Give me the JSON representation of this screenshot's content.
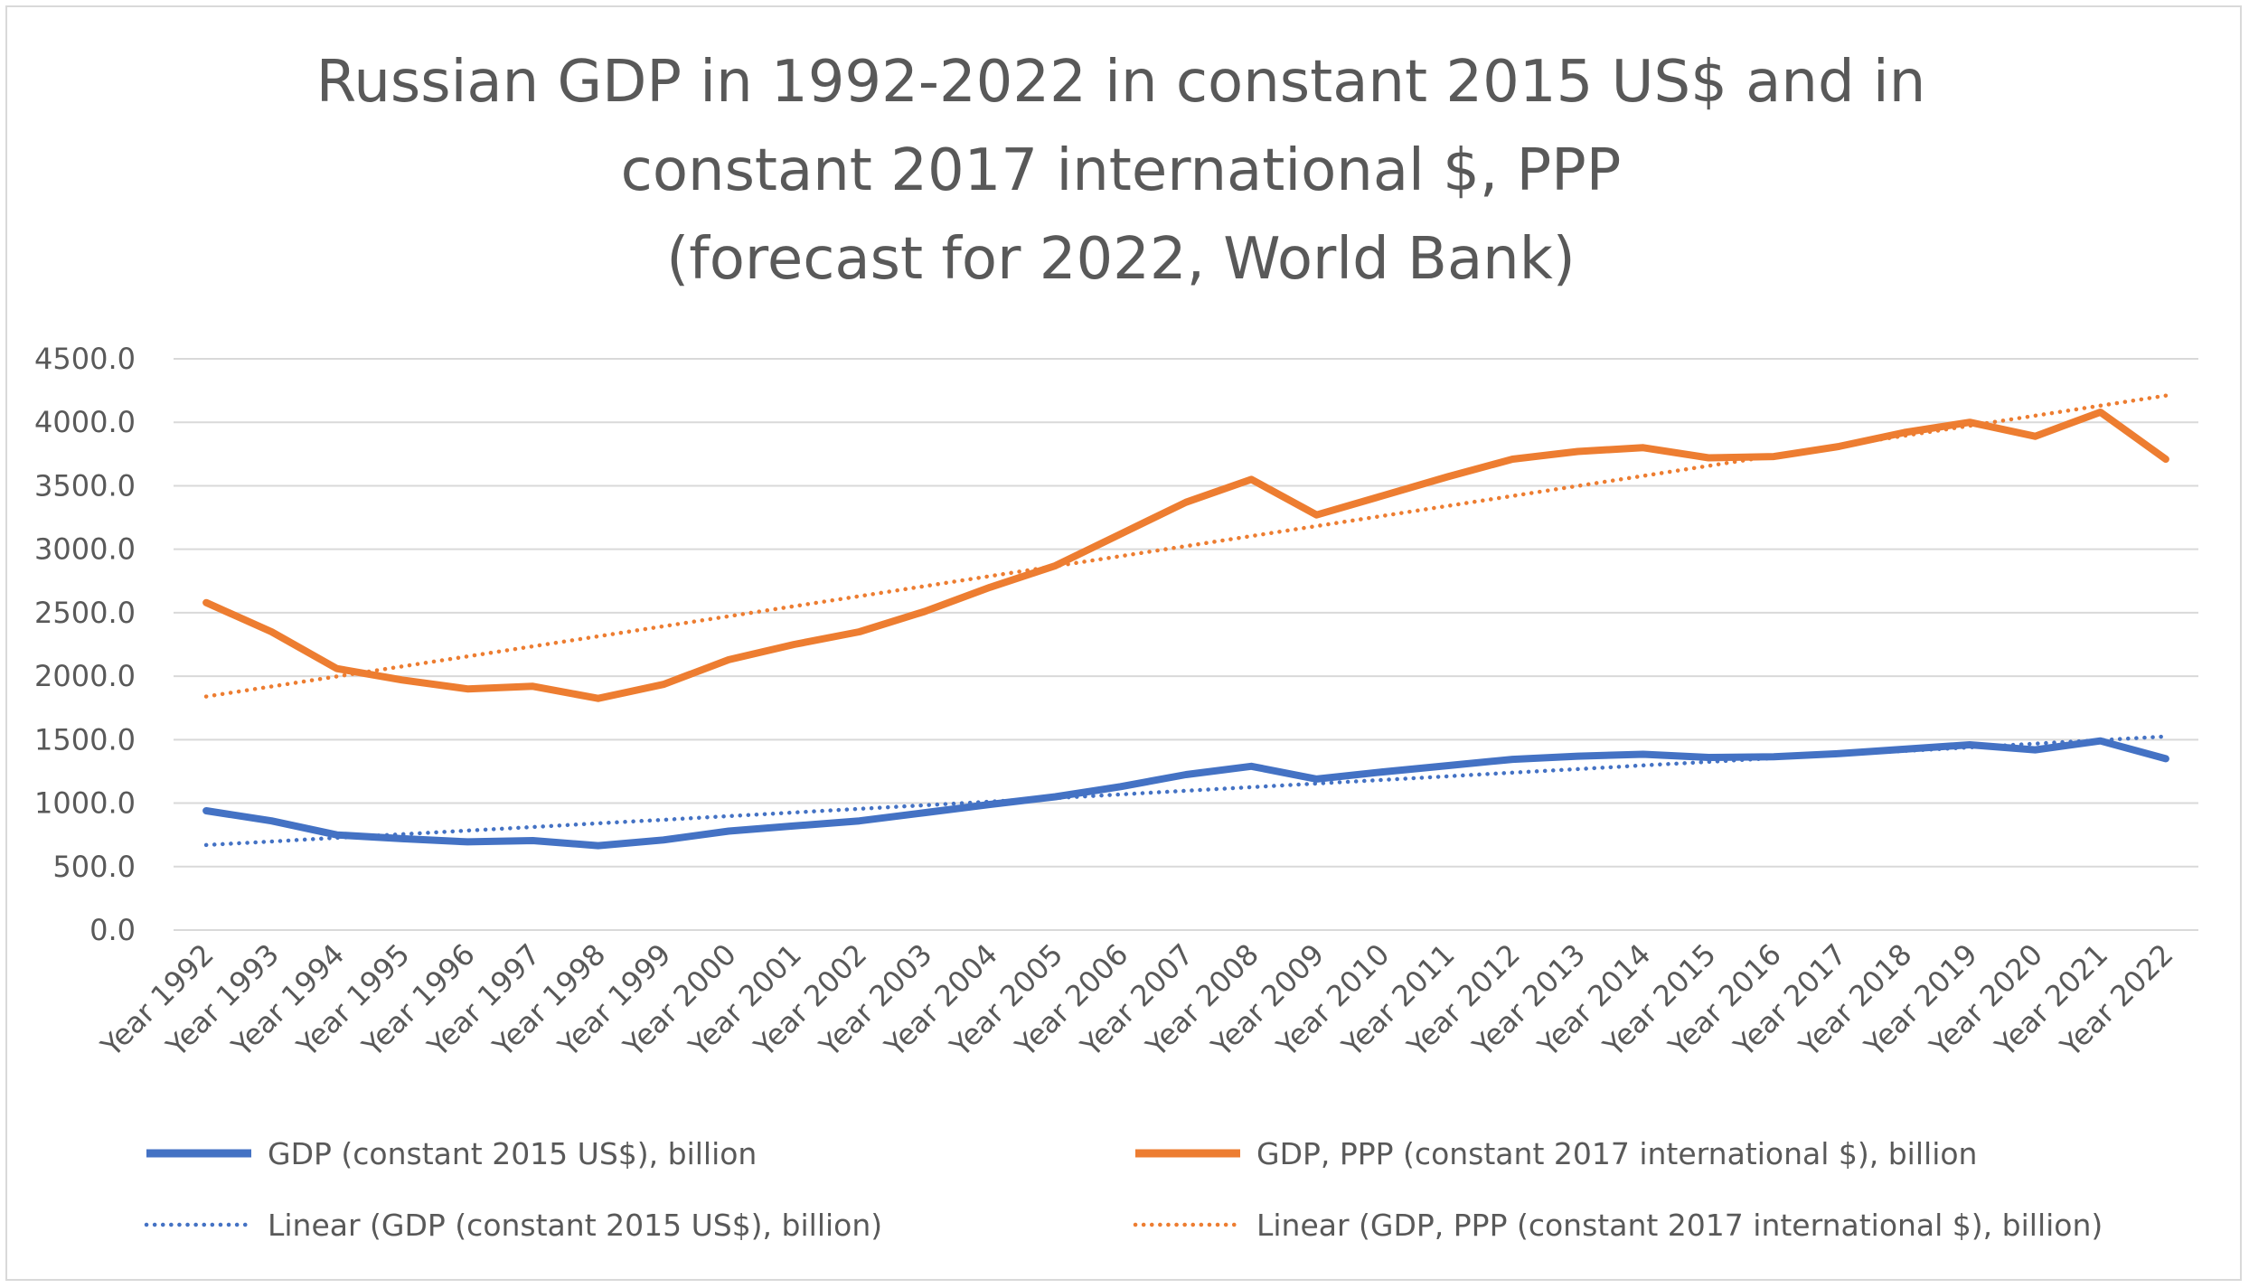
{
  "chart_data": {
    "type": "line",
    "title_lines": [
      "Russian GDP in 1992-2022 in constant 2015 US$ and in",
      "constant 2017 international $, PPP",
      "(forecast for 2022, World Bank)"
    ],
    "xlabel": "",
    "ylabel": "",
    "ylim": [
      0,
      4500
    ],
    "y_ticks": [
      "0.0",
      "500.0",
      "1000.0",
      "1500.0",
      "2000.0",
      "2500.0",
      "3000.0",
      "3500.0",
      "4000.0",
      "4500.0"
    ],
    "y_tick_values": [
      0,
      500,
      1000,
      1500,
      2000,
      2500,
      3000,
      3500,
      4000,
      4500
    ],
    "grid": true,
    "legend_position": "bottom",
    "categories": [
      "Year 1992",
      "Year 1993",
      "Year 1994",
      "Year 1995",
      "Year 1996",
      "Year 1997",
      "Year 1998",
      "Year 1999",
      "Year 2000",
      "Year 2001",
      "Year 2002",
      "Year 2003",
      "Year 2004",
      "Year 2005",
      "Year 2006",
      "Year 2007",
      "Year 2008",
      "Year 2009",
      "Year 2010",
      "Year 2011",
      "Year 2012",
      "Year 2013",
      "Year 2014",
      "Year 2015",
      "Year 2016",
      "Year 2017",
      "Year 2018",
      "Year 2019",
      "Year 2020",
      "Year 2021",
      "Year 2022"
    ],
    "series": [
      {
        "name": "GDP (constant 2015 US$), billion",
        "color": "#4472c4",
        "style": "solid",
        "values": [
          940,
          860,
          750,
          720,
          695,
          705,
          665,
          710,
          780,
          820,
          860,
          925,
          990,
          1050,
          1130,
          1225,
          1290,
          1190,
          1245,
          1295,
          1345,
          1370,
          1385,
          1360,
          1365,
          1390,
          1425,
          1460,
          1420,
          1490,
          1350
        ]
      },
      {
        "name": "GDP, PPP (constant 2017 international $), billion",
        "color": "#ed7d31",
        "style": "solid",
        "values": [
          2580,
          2350,
          2060,
          1970,
          1900,
          1920,
          1825,
          1935,
          2130,
          2250,
          2350,
          2510,
          2700,
          2870,
          3120,
          3370,
          3550,
          3270,
          3420,
          3570,
          3710,
          3770,
          3800,
          3720,
          3730,
          3810,
          3920,
          4000,
          3890,
          4080,
          3710
        ]
      },
      {
        "name": "Linear (GDP (constant 2015 US$), billion)",
        "color": "#4472c4",
        "style": "dotted",
        "values": [
          670,
          698,
          727,
          755,
          784,
          812,
          841,
          869,
          898,
          926,
          955,
          983,
          1012,
          1040,
          1069,
          1097,
          1126,
          1154,
          1183,
          1211,
          1240,
          1268,
          1297,
          1325,
          1354,
          1382,
          1411,
          1439,
          1468,
          1496,
          1525
        ]
      },
      {
        "name": "Linear (GDP, PPP (constant 2017 international $), billion)",
        "color": "#ed7d31",
        "style": "dotted",
        "values": [
          1840,
          1919,
          1998,
          2077,
          2156,
          2235,
          2314,
          2393,
          2472,
          2551,
          2630,
          2709,
          2788,
          2867,
          2946,
          3025,
          3104,
          3183,
          3262,
          3341,
          3420,
          3499,
          3578,
          3657,
          3736,
          3815,
          3894,
          3973,
          4052,
          4131,
          4210
        ]
      }
    ],
    "legend": [
      "GDP (constant 2015 US$), billion",
      "GDP, PPP (constant 2017 international $), billion",
      "Linear (GDP (constant 2015 US$), billion)",
      "Linear (GDP, PPP (constant 2017 international $), billion)"
    ]
  }
}
